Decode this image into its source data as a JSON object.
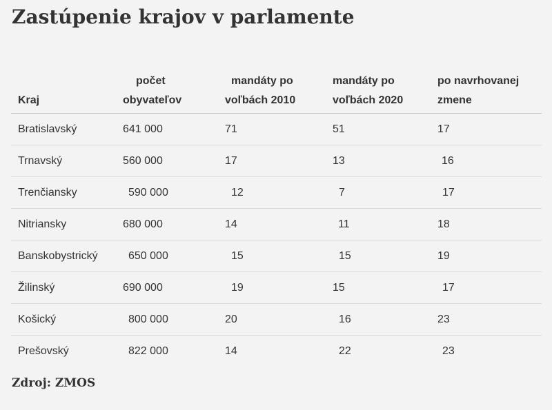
{
  "title": "Zastúpenie krajov v parlamente",
  "headers": {
    "kraj": "Kraj",
    "pocet_1": "počet",
    "pocet_2": "obyvateľov",
    "m2010_1": "mandáty po",
    "m2010_2": "voľbách 2010",
    "m2020_1": "mandáty po",
    "m2020_2": "voľbách 2020",
    "navrh_1": "po navrhovanej",
    "navrh_2": "zmene"
  },
  "rows": [
    {
      "kraj": "Bratislavský",
      "pocet": "641 000",
      "m2010": "71",
      "m2020": "51",
      "navrh": "17"
    },
    {
      "kraj": "Trnavský",
      "pocet": "560 000",
      "m2010": "17",
      "m2020": "13",
      "navrh": "16"
    },
    {
      "kraj": "Trenčiansky",
      "pocet": "590 000",
      "m2010": "12",
      "m2020": "7",
      "navrh": "17"
    },
    {
      "kraj": "Nitriansky",
      "pocet": "680 000",
      "m2010": "14",
      "m2020": "11",
      "navrh": "18"
    },
    {
      "kraj": "Banskobystrický",
      "pocet": "650 000",
      "m2010": "15",
      "m2020": "15",
      "navrh": "19"
    },
    {
      "kraj": "Žilinský",
      "pocet": "690 000",
      "m2010": "19",
      "m2020": "15",
      "navrh": "17"
    },
    {
      "kraj": "Košický",
      "pocet": "800 000",
      "m2010": "20",
      "m2020": "16",
      "navrh": "23"
    },
    {
      "kraj": "Prešovský",
      "pocet": "822 000",
      "m2010": "14",
      "m2020": "22",
      "navrh": "23"
    }
  ],
  "source": "Zdroj: ZMOS"
}
